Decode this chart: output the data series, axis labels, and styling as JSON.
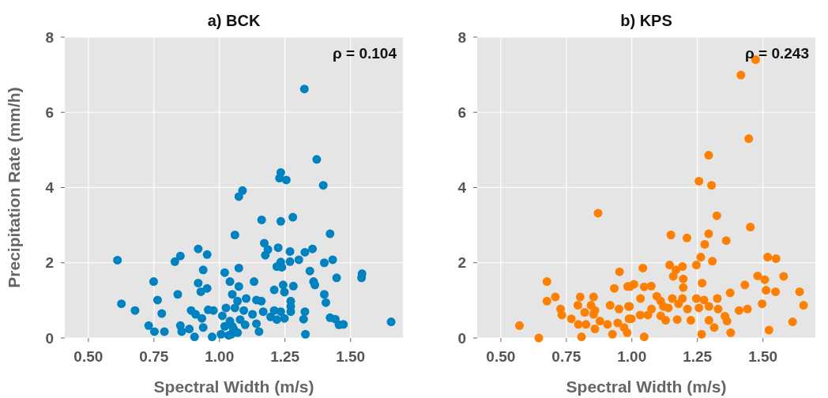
{
  "chart_data": [
    {
      "type": "scatter",
      "title": "a) BCK",
      "xlabel": "Spectral Width (m/s)",
      "ylabel": "Precipitation Rate (mm/h)",
      "xlim": [
        0.41,
        1.7
      ],
      "ylim": [
        0,
        8
      ],
      "xticks": [
        {
          "value": 0.5,
          "label": "0.50"
        },
        {
          "value": 0.75,
          "label": "0.75"
        },
        {
          "value": 1,
          "label": "1.00"
        },
        {
          "value": 1.25,
          "label": "1.25"
        },
        {
          "value": 1.5,
          "label": "1.50"
        }
      ],
      "yticks": [
        0,
        2,
        4,
        6,
        8
      ],
      "grid": true,
      "marker": "circle",
      "annotations": [
        "ρ = 0.104"
      ],
      "series": [
        {
          "color": "#0081c0",
          "x": [
            0.611,
            0.749,
            0.626,
            0.678,
            0.764,
            0.78,
            0.73,
            0.752,
            0.79,
            0.83,
            0.851,
            0.919,
            0.953,
            0.938,
            0.841,
            0.919,
            0.929,
            0.953,
            0.892,
            0.909,
            0.933,
            0.957,
            0.977,
            0.938,
            0.851,
            0.856,
            0.885,
            0.905,
            0.972,
            1.02,
            1.04,
            1.049,
            1.025,
            1.011,
            1.02,
            1.04,
            1.054,
            1.035,
            1.006,
            1.324,
            1.371,
            1.234,
            1.229,
            1.255,
            1.396,
            1.088,
            1.074,
            1.161,
            1.234,
            1.28,
            1.059,
            1.422,
            1.171,
            1.185,
            1.175,
            1.224,
            1.269,
            1.326,
            1.355,
            1.303,
            1.269,
            1.234,
            1.219,
            1.238,
            1.074,
            1.4,
            1.432,
            1.345,
            1.447,
            1.544,
            1.542,
            1.359,
            1.364,
            1.132,
            1.074,
            1.243,
            1.282,
            1.209,
            1.248,
            1.4,
            1.406,
            1.069,
            1.102,
            1.141,
            1.16,
            1.272,
            1.272,
            1.167,
            1.209,
            1.234,
            1.195,
            1.219,
            1.248,
            1.272,
            1.326,
            1.321,
            1.422,
            1.442,
            1.456,
            1.473,
            1.655,
            1.328,
            1.059,
            1.093,
            1.126,
            1.079,
            1.049,
            1.098,
            1.141,
            1.151,
            1.069,
            1.045
          ],
          "values": [
            2.07,
            1.5,
            0.91,
            0.73,
            1.01,
            0.65,
            0.33,
            0.17,
            0.17,
            2.03,
            2.18,
            2.37,
            2.22,
            1.81,
            1.16,
            1.46,
            1.23,
            1.32,
            0.73,
            0.63,
            0.52,
            0.75,
            0.73,
            0.28,
            0.33,
            0.17,
            0.24,
            0.03,
            0.03,
            1.74,
            1.5,
            1.16,
            0.8,
            0.59,
            0.31,
            0.45,
            0.24,
            0.07,
            0.1,
            6.62,
            4.75,
            4.4,
            4.25,
            4.2,
            4.06,
            3.92,
            3.76,
            3.14,
            3.1,
            3.21,
            2.74,
            2.77,
            2.52,
            2.35,
            2.2,
            2.4,
            2.3,
            2.28,
            2.37,
            2.08,
            2.03,
            2.02,
            1.9,
            1.88,
            1.86,
            2,
            2.08,
            1.78,
            1.6,
            1.71,
            1.6,
            1.5,
            1.41,
            1.5,
            1.37,
            1.41,
            1.38,
            1.28,
            1.22,
            1.16,
            0.94,
            0.98,
            1.05,
            1.01,
            0.98,
            0.98,
            0.84,
            0.7,
            0.73,
            0.7,
            0.56,
            0.49,
            0.52,
            0.7,
            0.7,
            0.5,
            0.54,
            0.5,
            0.35,
            0.36,
            0.43,
            0.1,
            0.8,
            0.73,
            0.63,
            0.49,
            0.31,
            0.35,
            0.38,
            0.17,
            0.14,
            0.1
          ]
        }
      ]
    },
    {
      "type": "scatter",
      "title": "b) KPS",
      "xlabel": "Spectral Width (m/s)",
      "xlim": [
        0.41,
        1.7
      ],
      "ylim": [
        0,
        8
      ],
      "xticks": [
        {
          "value": 0.5,
          "label": "0.50"
        },
        {
          "value": 0.75,
          "label": "0.75"
        },
        {
          "value": 1,
          "label": "1.00"
        },
        {
          "value": 1.25,
          "label": "1.25"
        },
        {
          "value": 1.5,
          "label": "1.50"
        }
      ],
      "yticks": [
        0,
        2,
        4,
        6,
        8
      ],
      "grid": true,
      "marker": "circle",
      "annotations": [
        "ρ = 0.243"
      ],
      "series": [
        {
          "color": "#ff7f00",
          "x": [
            0.871,
            0.953,
            0.676,
            0.676,
            0.708,
            0.728,
            0.733,
            0.571,
            0.645,
            0.769,
            0.794,
            0.803,
            0.82,
            0.796,
            0.825,
            0.808,
            0.844,
            0.854,
            0.859,
            0.854,
            0.878,
            0.859,
            0.907,
            0.917,
            0.933,
            0.951,
            0.946,
            0.926,
            0.97,
            0.984,
            0.987,
            0.989,
            1.472,
            1.416,
            1.446,
            1.293,
            1.256,
            1.304,
            1.324,
            1.452,
            1.149,
            1.21,
            1.293,
            1.36,
            1.278,
            1.263,
            1.246,
            1.307,
            1.144,
            1.193,
            1.168,
            1.158,
            1.196,
            1.196,
            1.042,
            1.268,
            1.518,
            1.55,
            1.579,
            1.48,
            1.507,
            1.431,
            1.512,
            1.548,
            1.64,
            1.655,
            1.375,
            1.497,
            1.441,
            1.409,
            1.613,
            1.523,
            0.993,
            1.008,
            1.047,
            1.074,
            1.033,
            0.991,
            0.998,
            1.032,
            1.061,
            1.075,
            1.095,
            1.11,
            1.12,
            1.154,
            1.139,
            1.11,
            1.129,
            1.173,
            1.178,
            1.193,
            1.212,
            1.225,
            1.246,
            1.256,
            1.275,
            1.294,
            1.326,
            1.329,
            1.294,
            1.314,
            1.266,
            1.355,
            1.363,
            1.377,
            1.047,
            0.982
          ],
          "values": [
            3.32,
            1.76,
            1.5,
            0.98,
            1.09,
            0.77,
            0.61,
            0.33,
            0,
            0.51,
            0.87,
            1.09,
            0.68,
            0.36,
            0.36,
            0.03,
            0.87,
            1.09,
            0.73,
            0.63,
            0.45,
            0.24,
            0.36,
            0.87,
            1.32,
            0.77,
            0.4,
            0.1,
            0.28,
            1.37,
            0.84,
            0.51,
            7.4,
            6.99,
            5.3,
            4.86,
            4.17,
            4.06,
            3.25,
            2.95,
            2.74,
            2.66,
            2.77,
            2.59,
            2.49,
            2.15,
            1.94,
            2.04,
            1.94,
            1.9,
            1.81,
            1.64,
            1.57,
            1.34,
            1.86,
            1.46,
            2.15,
            2.11,
            1.64,
            1.65,
            1.55,
            1.41,
            1.27,
            1.23,
            1.23,
            0.87,
            1.2,
            0.91,
            0.77,
            0.73,
            0.43,
            0.21,
            1.37,
            1.43,
            1.36,
            1.38,
            1.05,
            0.84,
            0.51,
            0.61,
            0.61,
            0.77,
            1.11,
            0.98,
            0.84,
            1.05,
            0.8,
            0.59,
            0.47,
            0.49,
            0.91,
            1.05,
            0.77,
            0.47,
            1.05,
            0.8,
            1.01,
            0.84,
            1.05,
            0.77,
            0.47,
            0.28,
            0.1,
            0.58,
            0.45,
            0.14,
            0.03,
            0.14
          ]
        }
      ]
    }
  ]
}
